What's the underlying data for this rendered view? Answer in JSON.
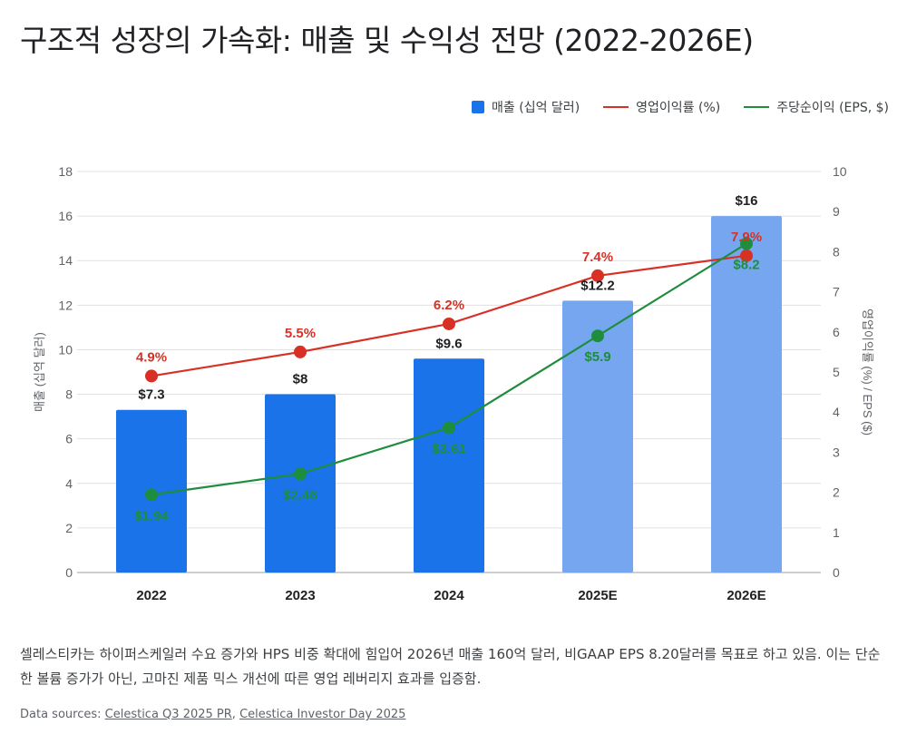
{
  "title": "구조적 성장의 가속화: 매출 및 수익성 전망 (2022-2026E)",
  "legend": {
    "revenue": "매출 (십억 달러)",
    "margin": "영업이익률 (%)",
    "eps": "주당순이익 (EPS, $)"
  },
  "colors": {
    "bar_actual": "#1a73e8",
    "bar_estimate": "#76a6f0",
    "margin_line": "#d93025",
    "eps_line": "#1e8e3e",
    "grid": "#e0e0e0",
    "label_dark": "#202124"
  },
  "chart_data": {
    "type": "bar+line",
    "categories": [
      "2022",
      "2023",
      "2024",
      "2025E",
      "2026E"
    ],
    "estimate_flags": [
      false,
      false,
      false,
      true,
      true
    ],
    "series": [
      {
        "name": "매출 (십억 달러)",
        "type": "bar",
        "axis": "left",
        "values": [
          7.3,
          8,
          9.6,
          12.2,
          16
        ],
        "labels": [
          "$7.3",
          "$8",
          "$9.6",
          "$12.2",
          "$16"
        ]
      },
      {
        "name": "영업이익률 (%)",
        "type": "line",
        "axis": "right",
        "values": [
          4.9,
          5.5,
          6.2,
          7.4,
          7.9
        ],
        "labels": [
          "4.9%",
          "5.5%",
          "6.2%",
          "7.4%",
          "7.9%"
        ]
      },
      {
        "name": "주당순이익 (EPS, $)",
        "type": "line",
        "axis": "right",
        "values": [
          1.94,
          2.46,
          3.61,
          5.9,
          8.2
        ],
        "labels": [
          "$1.94",
          "$2.46",
          "$3.61",
          "$5.9",
          "$8.2"
        ]
      }
    ],
    "ylabel_left": "매출 (십억 달러)",
    "ylabel_right": "영업이익률 (%) / EPS ($)",
    "ylim_left": [
      0,
      18
    ],
    "ylim_right": [
      0,
      10
    ],
    "yticks_left": [
      "0",
      "2",
      "4",
      "6",
      "8",
      "10",
      "12",
      "14",
      "16",
      "18"
    ],
    "yticks_right": [
      "0",
      "1",
      "2",
      "3",
      "4",
      "5",
      "6",
      "7",
      "8",
      "9",
      "10"
    ],
    "grid": true,
    "legend_position": "top-right"
  },
  "summary": "셀레스티카는 하이퍼스케일러 수요 증가와 HPS 비중 확대에 힘입어 2026년 매출 160억 달러, 비GAAP EPS 8.20달러를 목표로 하고 있음. 이는 단순한 볼륨 증가가 아닌, 고마진 제품 믹스 개선에 따른 영업 레버리지 효과를 입증함.",
  "sources": {
    "prefix": "Data sources:",
    "separator": ",",
    "links": [
      "Celestica Q3 2025 PR",
      "Celestica Investor Day 2025"
    ]
  }
}
